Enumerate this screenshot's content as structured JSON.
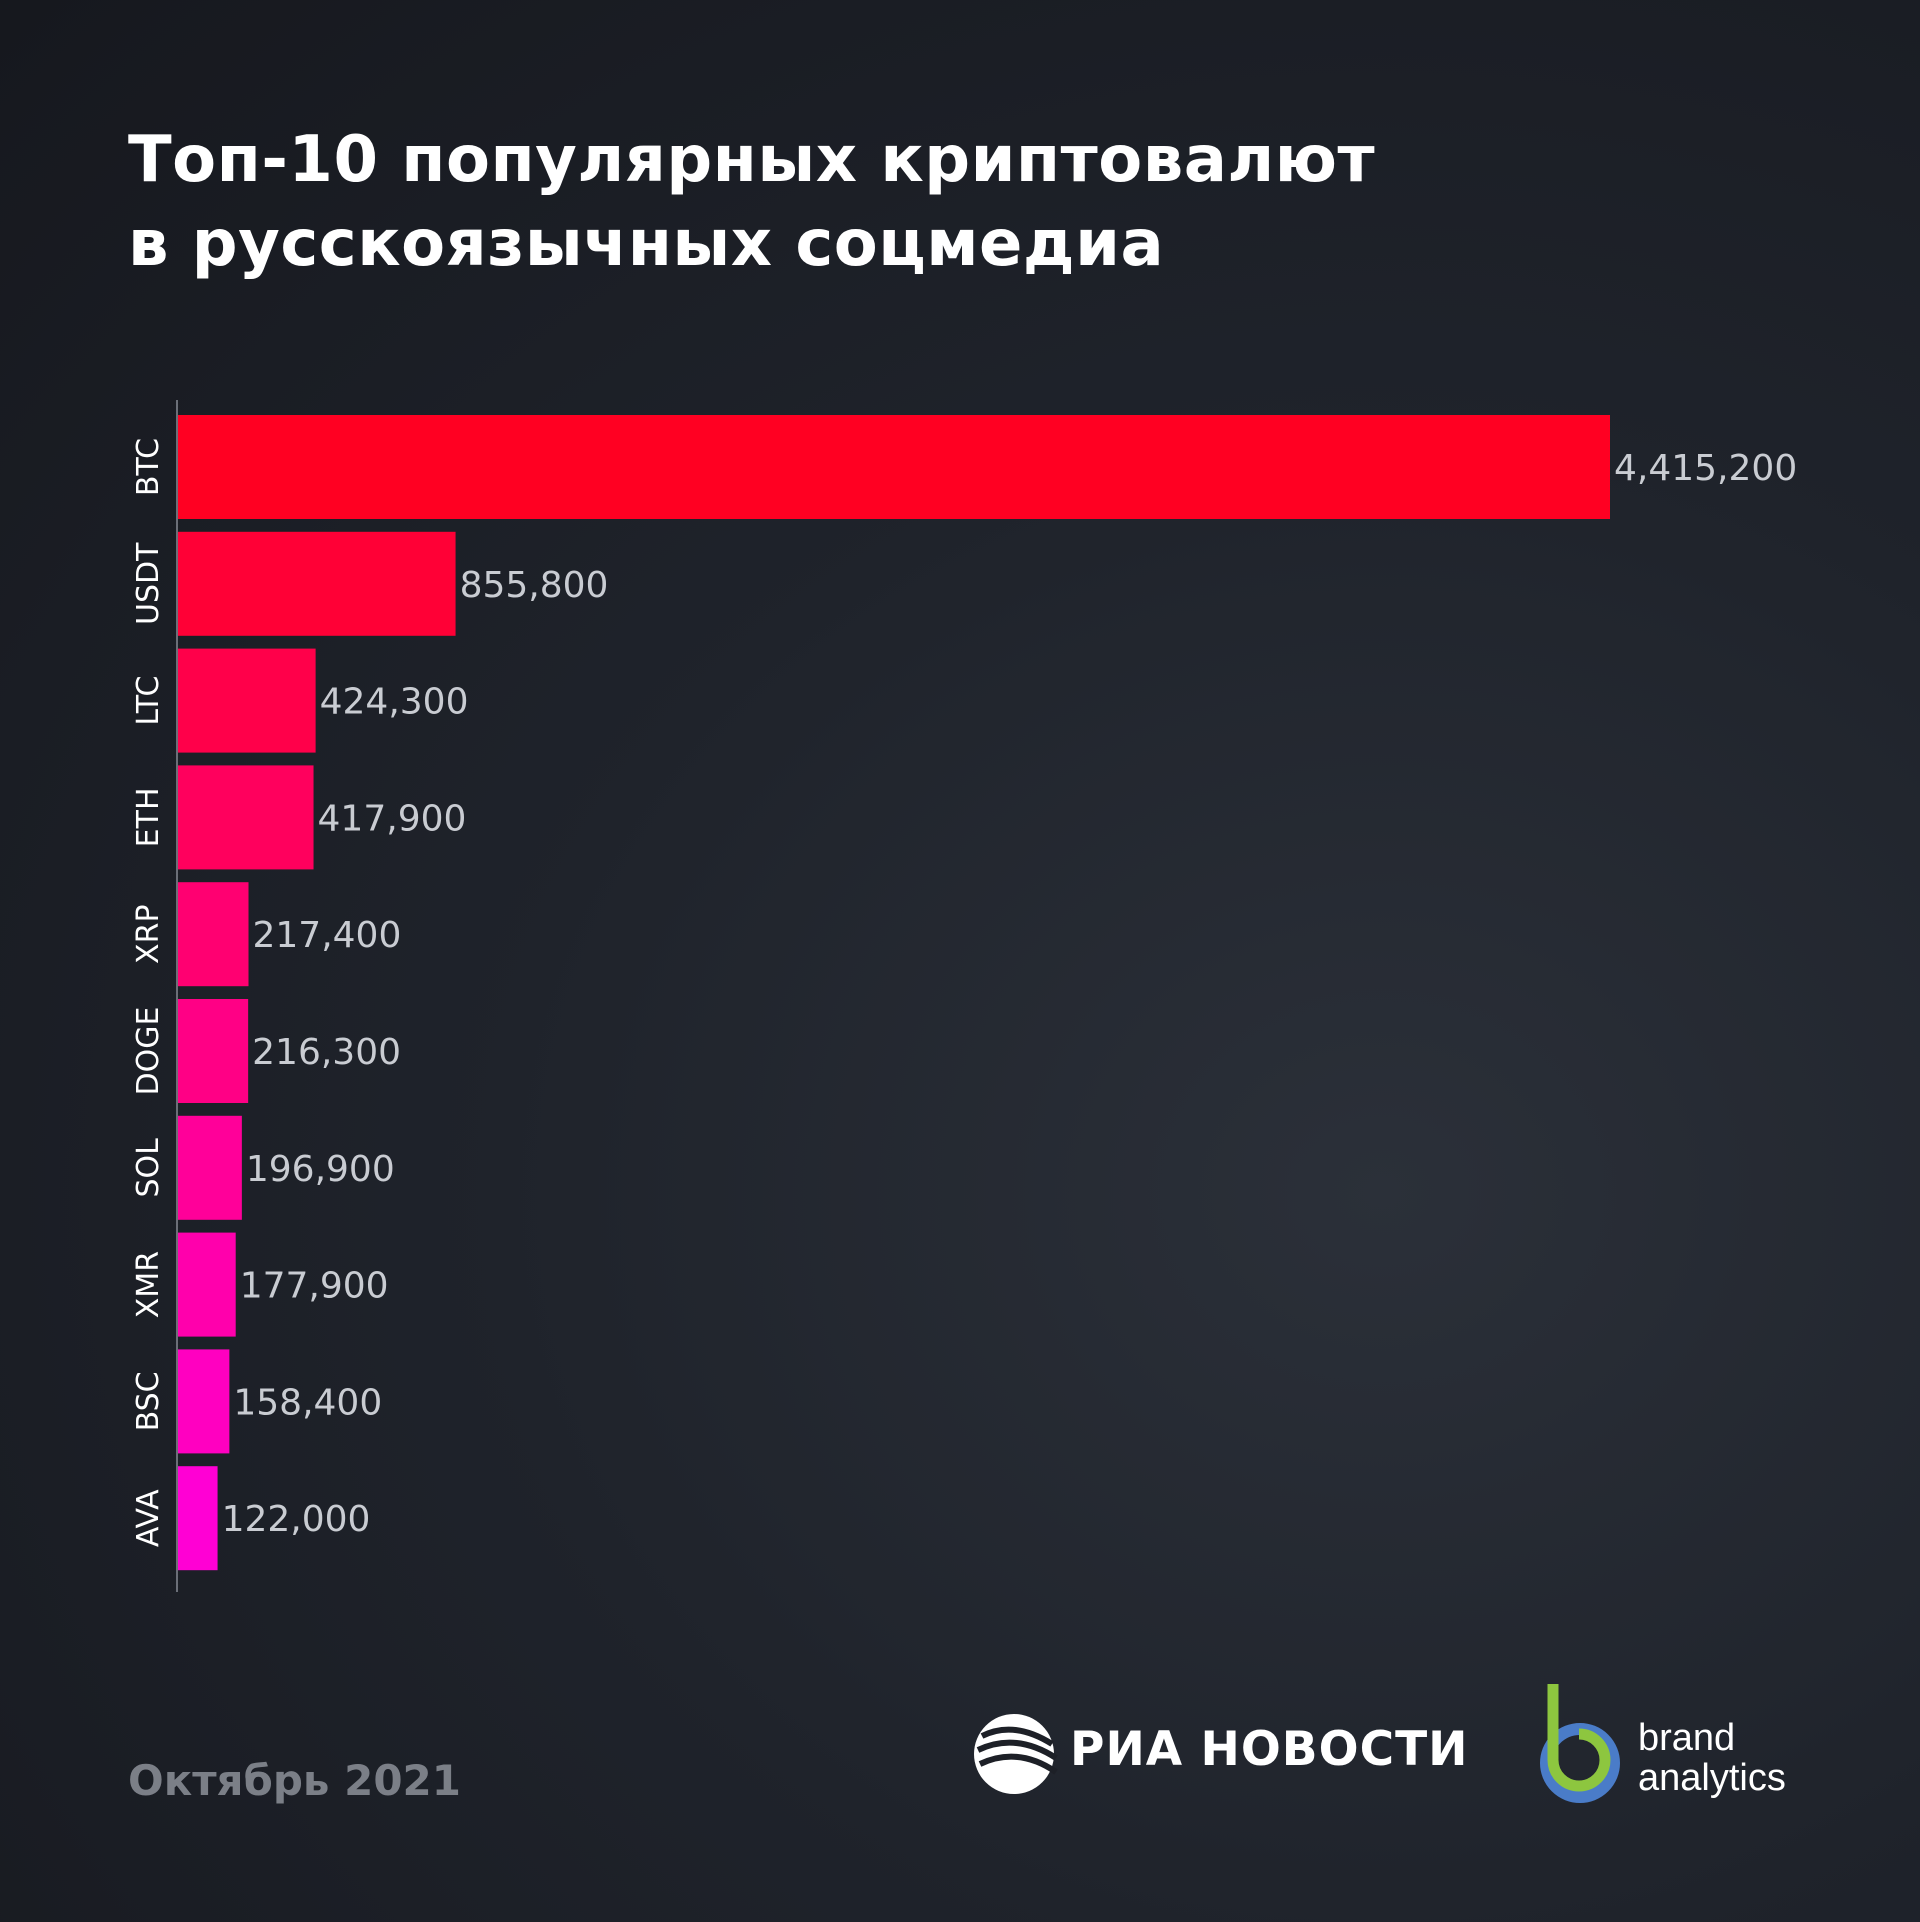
{
  "title": {
    "line1": "Топ-10 популярных криптовалют",
    "line2": "в русскоязычных соцмедиа"
  },
  "footer": {
    "date": "Октябрь 2021",
    "ria_logo_text": "РИА НОВОСТИ",
    "brand_line1": "brand",
    "brand_line2": "analytics"
  },
  "colors": {
    "bar_top": "#ff0022",
    "bar_bottom": "#ff00d4",
    "value_label": "#c9ccd2",
    "category_label": "#ffffff",
    "ba_green": "#8dc63f",
    "ba_blue": "#4a7cc8"
  },
  "chart_data": {
    "type": "bar",
    "orientation": "horizontal",
    "categories": [
      "BTC",
      "USDT",
      "LTC",
      "ETH",
      "XRP",
      "DOGE",
      "SOL",
      "XMR",
      "BSC",
      "AVA"
    ],
    "values": [
      4415200,
      855800,
      424300,
      417900,
      217400,
      216300,
      196900,
      177900,
      158400,
      122000
    ],
    "value_labels": [
      "4,415,200",
      "855,800",
      "424,300",
      "417,900",
      "217,400",
      "216,300",
      "196,900",
      "177,900",
      "158,400",
      "122,000"
    ],
    "xlim": [
      0,
      4415200
    ],
    "grid": false,
    "legend": "none"
  }
}
